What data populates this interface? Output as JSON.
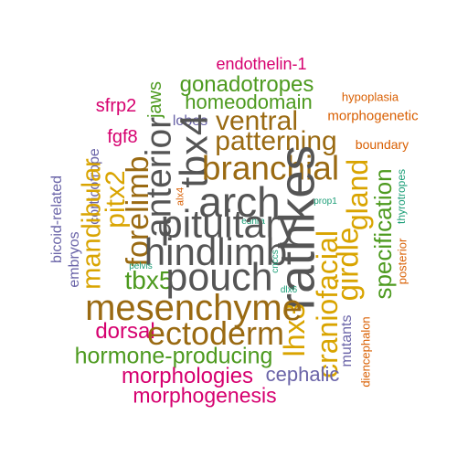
{
  "palette": {
    "pink": "#d6006f",
    "green": "#4d9a1f",
    "gray": "#555555",
    "brown": "#9a6a12",
    "gold": "#d9a400",
    "orange": "#d95f02",
    "purple": "#6a64a8",
    "teal": "#1b9e77"
  },
  "words": [
    {
      "text": "endothelin-1",
      "color": "pink",
      "weight": 0.26
    },
    {
      "text": "gonadotropes",
      "color": "green",
      "weight": 0.34
    },
    {
      "text": "jaws",
      "color": "green",
      "weight": 0.27
    },
    {
      "text": "homeodomain",
      "color": "green",
      "weight": 0.32
    },
    {
      "text": "hypoplasia",
      "color": "orange",
      "weight": 0.18
    },
    {
      "text": "sfrp2",
      "color": "pink",
      "weight": 0.26
    },
    {
      "text": "lobes",
      "color": "purple",
      "weight": 0.23
    },
    {
      "text": "ventral",
      "color": "brown",
      "weight": 0.46
    },
    {
      "text": "morphogenetic",
      "color": "orange",
      "weight": 0.21
    },
    {
      "text": "fgf8",
      "color": "pink",
      "weight": 0.26
    },
    {
      "text": "patterning",
      "color": "brown",
      "weight": 0.46
    },
    {
      "text": "corticotrope",
      "color": "purple",
      "weight": 0.23
    },
    {
      "text": "boundary",
      "color": "orange",
      "weight": 0.19
    },
    {
      "text": "tbx4",
      "color": "gray",
      "weight": 0.62
    },
    {
      "text": "anterior",
      "color": "gray",
      "weight": 0.56
    },
    {
      "text": "branchial",
      "color": "brown",
      "weight": 0.54
    },
    {
      "text": "bicoid-related",
      "color": "purple",
      "weight": 0.23
    },
    {
      "text": "mandibular",
      "color": "gold",
      "weight": 0.42
    },
    {
      "text": "pitx2",
      "color": "gold",
      "weight": 0.43
    },
    {
      "text": "forelimb",
      "color": "brown",
      "weight": 0.49
    },
    {
      "text": "arch",
      "color": "gray",
      "weight": 0.66
    },
    {
      "text": "ednra",
      "color": "teal",
      "weight": 0.14
    },
    {
      "text": "rathkes",
      "color": "gray",
      "weight": 0.78
    },
    {
      "text": "alx4",
      "color": "orange",
      "weight": 0.15
    },
    {
      "text": "gland",
      "color": "gold",
      "weight": 0.46
    },
    {
      "text": "prop1",
      "color": "teal",
      "weight": 0.14
    },
    {
      "text": "thyrotropes",
      "color": "teal",
      "weight": 0.17
    },
    {
      "text": "embryos",
      "color": "purple",
      "weight": 0.23
    },
    {
      "text": "pituitary",
      "color": "gray",
      "weight": 0.62
    },
    {
      "text": "specification",
      "color": "green",
      "weight": 0.38
    },
    {
      "text": "hindlimb",
      "color": "gray",
      "weight": 0.61
    },
    {
      "text": "girdle",
      "color": "gold",
      "weight": 0.48
    },
    {
      "text": "posterior",
      "color": "orange",
      "weight": 0.18
    },
    {
      "text": "pelvis",
      "color": "teal",
      "weight": 0.14
    },
    {
      "text": "cnccs",
      "color": "teal",
      "weight": 0.14
    },
    {
      "text": "tbx5",
      "color": "green",
      "weight": 0.41
    },
    {
      "text": "pouch",
      "color": "gray",
      "weight": 0.62
    },
    {
      "text": "dlx6",
      "color": "teal",
      "weight": 0.14
    },
    {
      "text": "craniofacial",
      "color": "gold",
      "weight": 0.46
    },
    {
      "text": "lhx3",
      "color": "gold",
      "weight": 0.46
    },
    {
      "text": "mesenchyme",
      "color": "brown",
      "weight": 0.58
    },
    {
      "text": "dorsal",
      "color": "pink",
      "weight": 0.35
    },
    {
      "text": "ectoderm",
      "color": "brown",
      "weight": 0.52
    },
    {
      "text": "mutants",
      "color": "purple",
      "weight": 0.23
    },
    {
      "text": "diencephalon",
      "color": "orange",
      "weight": 0.19
    },
    {
      "text": "hormone-producing",
      "color": "green",
      "weight": 0.36
    },
    {
      "text": "morphologies",
      "color": "pink",
      "weight": 0.34
    },
    {
      "text": "cephalic",
      "color": "purple",
      "weight": 0.31
    },
    {
      "text": "morphogenesis",
      "color": "pink",
      "weight": 0.33
    }
  ]
}
